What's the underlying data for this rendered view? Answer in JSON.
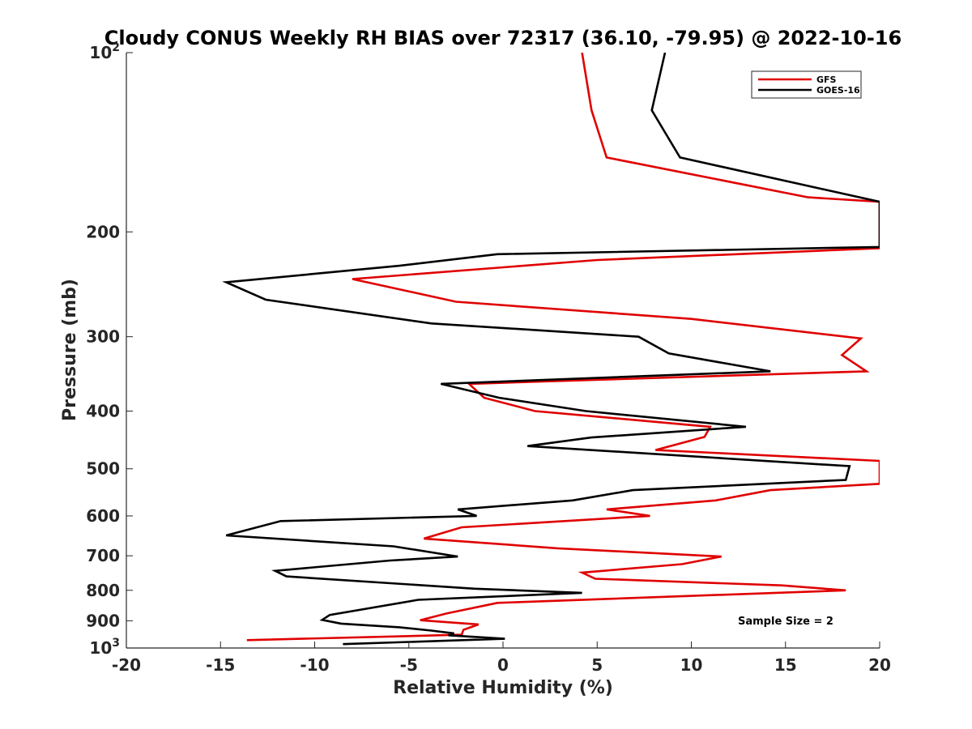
{
  "chart_data": {
    "type": "line",
    "title": "Cloudy CONUS Weekly RH BIAS over 72317 (36.10, -79.95) @ 2022-10-16",
    "xlabel": "Relative Humidity (%)",
    "ylabel": "Pressure (mb)",
    "xlim": [
      -20,
      20
    ],
    "ylim": [
      100,
      1000
    ],
    "y_scale": "log",
    "y_reversed": true,
    "grid": false,
    "x_ticks": [
      -20,
      -15,
      -10,
      -5,
      0,
      5,
      10,
      15,
      20
    ],
    "x_tick_labels": [
      "-20",
      "-15",
      "-10",
      "-5",
      "0",
      "5",
      "10",
      "15",
      "20"
    ],
    "y_ticks": [
      100,
      200,
      300,
      400,
      500,
      600,
      700,
      800,
      900,
      1000
    ],
    "y_tick_labels": [
      {
        "base": "10",
        "exp": "2"
      },
      {
        "base": "200",
        "exp": ""
      },
      {
        "base": "300",
        "exp": ""
      },
      {
        "base": "400",
        "exp": ""
      },
      {
        "base": "500",
        "exp": ""
      },
      {
        "base": "600",
        "exp": ""
      },
      {
        "base": "700",
        "exp": ""
      },
      {
        "base": "800",
        "exp": ""
      },
      {
        "base": "900",
        "exp": ""
      },
      {
        "base": "10",
        "exp": "3"
      }
    ],
    "legend_position": "top-right",
    "annotation": "Sample Size = 2",
    "series": [
      {
        "name": "GFS",
        "color": "#e00000",
        "points": [
          [
            4.2,
            100
          ],
          [
            4.7,
            125
          ],
          [
            5.5,
            150
          ],
          [
            16.2,
            175
          ],
          [
            20.0,
            178
          ],
          [
            20.0,
            213
          ],
          [
            5.0,
            223
          ],
          [
            -8.0,
            240
          ],
          [
            -2.5,
            262
          ],
          [
            10.0,
            280
          ],
          [
            19.0,
            302
          ],
          [
            18.0,
            322
          ],
          [
            19.3,
            343
          ],
          [
            -1.8,
            360
          ],
          [
            -1.0,
            380
          ],
          [
            1.7,
            400
          ],
          [
            11.0,
            425
          ],
          [
            10.7,
            442
          ],
          [
            8.1,
            465
          ],
          [
            20.0,
            485
          ],
          [
            20.0,
            530
          ],
          [
            14.2,
            543
          ],
          [
            11.3,
            565
          ],
          [
            5.5,
            585
          ],
          [
            7.8,
            600
          ],
          [
            -2.2,
            627
          ],
          [
            -4.2,
            655
          ],
          [
            2.9,
            680
          ],
          [
            11.6,
            702
          ],
          [
            9.5,
            723
          ],
          [
            4.2,
            747
          ],
          [
            4.9,
            765
          ],
          [
            14.8,
            785
          ],
          [
            18.2,
            800
          ],
          [
            -0.3,
            840
          ],
          [
            -3.0,
            875
          ],
          [
            -4.4,
            898
          ],
          [
            -1.3,
            913
          ],
          [
            -2.1,
            932
          ],
          [
            -2.2,
            950
          ],
          [
            -13.6,
            970
          ]
        ]
      },
      {
        "name": "GOES-16",
        "color": "#000000",
        "points": [
          [
            8.6,
            100
          ],
          [
            7.9,
            125
          ],
          [
            9.4,
            150
          ],
          [
            20.0,
            178
          ],
          [
            20.0,
            212
          ],
          [
            -0.3,
            218
          ],
          [
            -5.5,
            228
          ],
          [
            -14.7,
            243
          ],
          [
            -12.6,
            260
          ],
          [
            -3.8,
            285
          ],
          [
            7.2,
            300
          ],
          [
            8.8,
            320
          ],
          [
            14.2,
            343
          ],
          [
            -3.3,
            360
          ],
          [
            -0.2,
            380
          ],
          [
            4.4,
            400
          ],
          [
            12.9,
            425
          ],
          [
            4.7,
            443
          ],
          [
            1.3,
            458
          ],
          [
            18.4,
            495
          ],
          [
            18.2,
            522
          ],
          [
            6.9,
            543
          ],
          [
            3.7,
            565
          ],
          [
            -2.4,
            585
          ],
          [
            -1.4,
            600
          ],
          [
            -11.8,
            612
          ],
          [
            -14.7,
            647
          ],
          [
            -5.8,
            675
          ],
          [
            -2.4,
            702
          ],
          [
            -6.0,
            713
          ],
          [
            -12.1,
            742
          ],
          [
            -11.5,
            758
          ],
          [
            -1.5,
            795
          ],
          [
            4.2,
            808
          ],
          [
            -4.5,
            830
          ],
          [
            -9.2,
            880
          ],
          [
            -9.6,
            897
          ],
          [
            -8.6,
            910
          ],
          [
            -5.5,
            923
          ],
          [
            -3.8,
            935
          ],
          [
            -2.6,
            945
          ],
          [
            -2.9,
            952
          ],
          [
            0.1,
            965
          ],
          [
            -8.5,
            985
          ]
        ]
      }
    ]
  }
}
